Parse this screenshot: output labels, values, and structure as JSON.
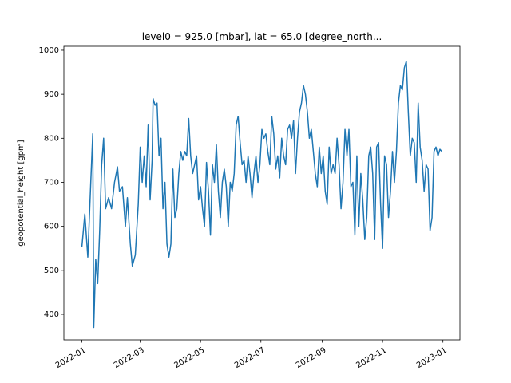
{
  "chart_data": {
    "type": "line",
    "title": "level0 = 925.0 [mbar], lat = 65.0 [degree_north...",
    "y_label": "geopotential_height [gpm]",
    "x": [
      0,
      3,
      6,
      9,
      11,
      12,
      14,
      16,
      18,
      20,
      22,
      24,
      27,
      30,
      33,
      36,
      38,
      41,
      44,
      46,
      49,
      51,
      54,
      57,
      59,
      61,
      63,
      65,
      67,
      69,
      71,
      72,
      74,
      76,
      78,
      80,
      82,
      84,
      86,
      88,
      90,
      92,
      94,
      96,
      98,
      100,
      102,
      104,
      106,
      108,
      110,
      112,
      114,
      116,
      118,
      120,
      122,
      124,
      126,
      128,
      130,
      132,
      134,
      136,
      138,
      140,
      142,
      144,
      146,
      148,
      150,
      152,
      154,
      156,
      158,
      160,
      162,
      164,
      166,
      168,
      170,
      172,
      174,
      176,
      178,
      180,
      182,
      184,
      186,
      188,
      190,
      192,
      194,
      196,
      198,
      200,
      202,
      204,
      206,
      208,
      210,
      212,
      214,
      216,
      218,
      220,
      222,
      224,
      226,
      228,
      230,
      232,
      234,
      236,
      238,
      240,
      242,
      244,
      246,
      248,
      250,
      252,
      254,
      256,
      258,
      260,
      262,
      264,
      266,
      268,
      270,
      272,
      274,
      276,
      278,
      280,
      282,
      284,
      286,
      288,
      290,
      292,
      294,
      296,
      298,
      300,
      302,
      304,
      306,
      308,
      310,
      312,
      314,
      316,
      318,
      320,
      322,
      324,
      326,
      328,
      330,
      332,
      334,
      336,
      338,
      340,
      342,
      344,
      346,
      348,
      350,
      352,
      354,
      356,
      358,
      360,
      362,
      364
    ],
    "series": [
      {
        "name": "geopotential_height",
        "color": "#1f77b4",
        "values": [
          553,
          628,
          530,
          700,
          810,
          370,
          525,
          470,
          590,
          740,
          800,
          640,
          665,
          640,
          700,
          735,
          680,
          690,
          600,
          665,
          560,
          510,
          535,
          650,
          780,
          700,
          760,
          690,
          830,
          660,
          750,
          890,
          875,
          880,
          760,
          800,
          640,
          700,
          560,
          530,
          560,
          730,
          620,
          640,
          720,
          770,
          750,
          770,
          760,
          845,
          760,
          720,
          740,
          760,
          660,
          690,
          640,
          600,
          745,
          680,
          580,
          740,
          700,
          785,
          680,
          620,
          700,
          730,
          690,
          600,
          700,
          680,
          720,
          830,
          850,
          790,
          740,
          750,
          700,
          760,
          720,
          665,
          720,
          760,
          700,
          740,
          820,
          800,
          810,
          770,
          740,
          850,
          810,
          730,
          760,
          710,
          800,
          760,
          740,
          820,
          830,
          800,
          840,
          720,
          800,
          860,
          880,
          920,
          900,
          860,
          800,
          820,
          770,
          720,
          690,
          780,
          720,
          760,
          680,
          650,
          780,
          720,
          740,
          720,
          800,
          740,
          640,
          700,
          820,
          760,
          820,
          690,
          700,
          580,
          760,
          600,
          720,
          660,
          570,
          620,
          760,
          780,
          720,
          570,
          780,
          790,
          650,
          550,
          760,
          740,
          620,
          680,
          770,
          700,
          770,
          880,
          920,
          910,
          960,
          975,
          860,
          760,
          800,
          790,
          700,
          880,
          780,
          750,
          680,
          740,
          730,
          590,
          620,
          770,
          780,
          760,
          775,
          770
        ]
      }
    ],
    "xlim": [
      -18.2,
      382.2
    ],
    "xticks": [
      {
        "value": 0,
        "label": "2022-01"
      },
      {
        "value": 59,
        "label": "2022-03"
      },
      {
        "value": 120,
        "label": "2022-05"
      },
      {
        "value": 181,
        "label": "2022-07"
      },
      {
        "value": 243,
        "label": "2022-09"
      },
      {
        "value": 304,
        "label": "2022-11"
      },
      {
        "value": 365,
        "label": "2023-01"
      }
    ],
    "ylim": [
      342,
      1009
    ],
    "yticks": [
      400,
      500,
      600,
      700,
      800,
      900,
      1000
    ]
  }
}
